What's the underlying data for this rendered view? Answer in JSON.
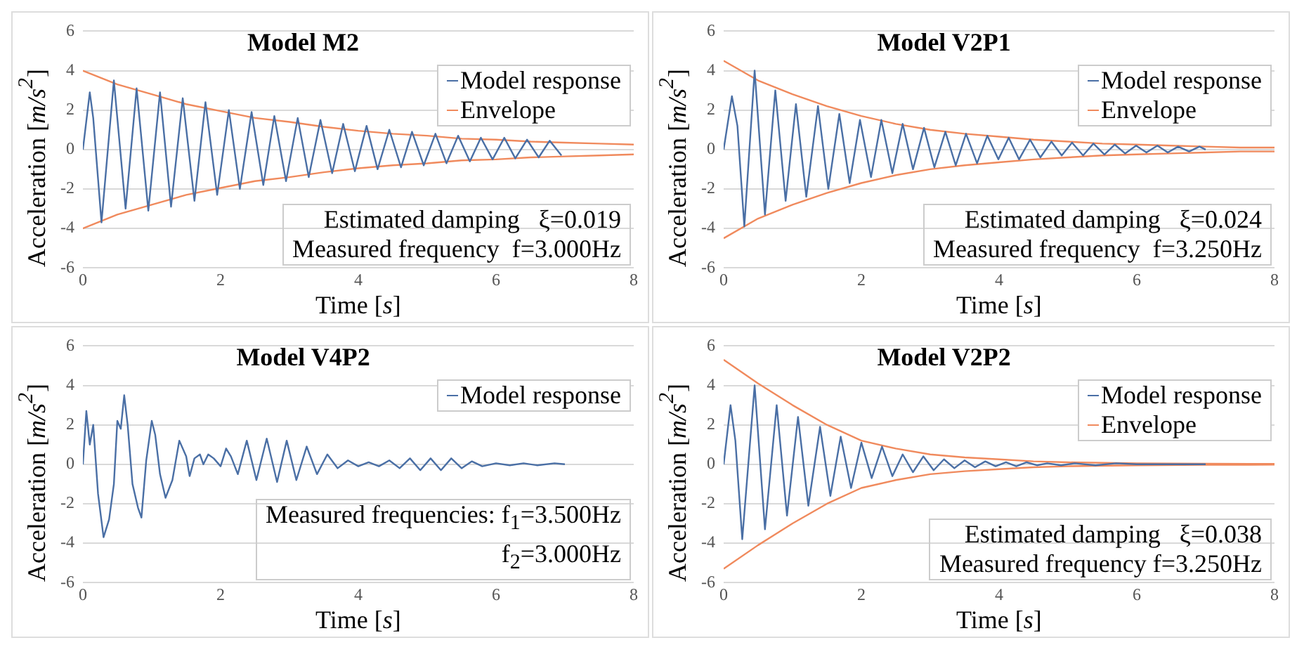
{
  "chart_data": [
    {
      "type": "line",
      "title": "Model M2",
      "xlabel": "Time [s]",
      "ylabel": "Acceleration [m/s$^{2}$]",
      "xlim": [
        0,
        8
      ],
      "xticks": [
        0,
        2,
        4,
        6,
        8
      ],
      "ylim": [
        -6,
        6
      ],
      "yticks": [
        -6,
        -4,
        -2,
        0,
        2,
        4,
        6
      ],
      "grid": "y",
      "legend": "top right",
      "marker": "none",
      "annotations": [
        "Estimated damping   ξ=0.019",
        "Measured frequency  f=3.000Hz"
      ],
      "series": [
        {
          "name": "Model response",
          "color": "#4a6fa5",
          "x": [
            0,
            0.1,
            0.15,
            0.27,
            0.45,
            0.62,
            0.78,
            0.95,
            1.12,
            1.28,
            1.45,
            1.62,
            1.78,
            1.95,
            2.12,
            2.28,
            2.45,
            2.62,
            2.78,
            2.95,
            3.12,
            3.28,
            3.45,
            3.62,
            3.78,
            3.95,
            4.12,
            4.28,
            4.45,
            4.62,
            4.78,
            4.95,
            5.12,
            5.28,
            5.45,
            5.62,
            5.78,
            5.95,
            6.12,
            6.28,
            6.45,
            6.62,
            6.78,
            6.95
          ],
          "values": [
            0,
            2.9,
            1.6,
            -3.7,
            3.5,
            -3,
            3.1,
            -3.1,
            2.9,
            -2.9,
            2.6,
            -2.6,
            2.4,
            -2.3,
            2,
            -2,
            1.9,
            -1.8,
            1.7,
            -1.6,
            1.6,
            -1.4,
            1.5,
            -1.2,
            1.3,
            -1.1,
            1.2,
            -1,
            1,
            -0.9,
            0.9,
            -0.8,
            0.8,
            -0.7,
            0.7,
            -0.6,
            0.6,
            -0.5,
            0.6,
            -0.45,
            0.5,
            -0.4,
            0.45,
            -0.3
          ]
        },
        {
          "name": "Envelope",
          "color": "#f08a5d",
          "x": [
            0,
            0.5,
            1,
            1.5,
            2,
            2.5,
            3,
            3.5,
            4,
            4.5,
            5,
            5.5,
            6,
            6.5,
            7,
            7.5,
            8
          ],
          "values": [
            4,
            3.3,
            2.8,
            2.3,
            1.95,
            1.6,
            1.4,
            1.15,
            0.95,
            0.8,
            0.7,
            0.55,
            0.5,
            0.4,
            0.35,
            0.3,
            0.25
          ]
        },
        {
          "color": "#f08a5d",
          "x": [
            0,
            0.5,
            1,
            1.5,
            2,
            2.5,
            3,
            3.5,
            4,
            4.5,
            5,
            5.5,
            6,
            6.5,
            7,
            7.5,
            8
          ],
          "values": [
            -4,
            -3.3,
            -2.8,
            -2.3,
            -1.95,
            -1.6,
            -1.4,
            -1.15,
            -0.95,
            -0.8,
            -0.7,
            -0.55,
            -0.5,
            -0.4,
            -0.35,
            -0.3,
            -0.25
          ]
        }
      ]
    },
    {
      "type": "line",
      "title": "Model V2P1",
      "xlabel": "Time [s]",
      "ylabel": "Acceleration [m/s$^{2}$]",
      "xlim": [
        0,
        8
      ],
      "xticks": [
        0,
        2,
        4,
        6,
        8
      ],
      "ylim": [
        -6,
        6
      ],
      "yticks": [
        -6,
        -4,
        -2,
        0,
        2,
        4,
        6
      ],
      "grid": "y",
      "legend": "top right",
      "marker": "none",
      "annotations": [
        "Estimated damping   ξ=0.024",
        "Measured frequency  f=3.250Hz"
      ],
      "series": [
        {
          "name": "Model response",
          "color": "#4a6fa5",
          "x": [
            0,
            0.12,
            0.2,
            0.3,
            0.45,
            0.6,
            0.75,
            0.9,
            1.05,
            1.2,
            1.37,
            1.52,
            1.68,
            1.83,
            1.98,
            2.14,
            2.29,
            2.45,
            2.6,
            2.75,
            2.91,
            3.06,
            3.22,
            3.37,
            3.52,
            3.68,
            3.83,
            3.99,
            4.14,
            4.29,
            4.45,
            4.6,
            4.76,
            4.91,
            5.06,
            5.22,
            5.37,
            5.53,
            5.68,
            5.83,
            5.99,
            6.14,
            6.3,
            6.45,
            6.6,
            6.76,
            6.91,
            7.0
          ],
          "values": [
            0,
            2.7,
            1.2,
            -3.9,
            4,
            -3.3,
            3,
            -2.6,
            2.3,
            -2.4,
            2.2,
            -2,
            1.8,
            -1.7,
            1.5,
            -1.4,
            1.5,
            -1.2,
            1.3,
            -1,
            1.1,
            -0.9,
            0.9,
            -0.8,
            0.8,
            -0.7,
            0.7,
            -0.5,
            0.6,
            -0.5,
            0.5,
            -0.4,
            0.4,
            -0.3,
            0.35,
            -0.3,
            0.3,
            -0.25,
            0.25,
            -0.2,
            0.2,
            -0.15,
            0.2,
            -0.15,
            0.15,
            -0.1,
            0.15,
            0
          ]
        },
        {
          "name": "Envelope",
          "color": "#f08a5d",
          "x": [
            0,
            0.5,
            1,
            1.5,
            2,
            2.5,
            3,
            3.5,
            4,
            4.5,
            5,
            5.5,
            6,
            6.5,
            7,
            7.5,
            8
          ],
          "values": [
            4.5,
            3.5,
            2.8,
            2.2,
            1.7,
            1.3,
            1,
            0.8,
            0.65,
            0.5,
            0.4,
            0.3,
            0.25,
            0.2,
            0.15,
            0.1,
            0.1
          ]
        },
        {
          "color": "#f08a5d",
          "x": [
            0,
            0.5,
            1,
            1.5,
            2,
            2.5,
            3,
            3.5,
            4,
            4.5,
            5,
            5.5,
            6,
            6.5,
            7,
            7.5,
            8
          ],
          "values": [
            -4.5,
            -3.5,
            -2.8,
            -2.2,
            -1.7,
            -1.3,
            -1,
            -0.8,
            -0.65,
            -0.5,
            -0.4,
            -0.3,
            -0.25,
            -0.2,
            -0.15,
            -0.1,
            -0.1
          ]
        }
      ]
    },
    {
      "type": "line",
      "title": "Model V4P2",
      "xlabel": "Time [s]",
      "ylabel": "Acceleration [m/s$^{2}$]",
      "xlim": [
        0,
        8
      ],
      "xticks": [
        0,
        2,
        4,
        6,
        8
      ],
      "ylim": [
        -6,
        6
      ],
      "yticks": [
        -6,
        -4,
        -2,
        0,
        2,
        4,
        6
      ],
      "grid": "y",
      "legend": "top right",
      "marker": "none",
      "annotations": [
        "Measured frequencies: f$_{1}$=3.500Hz",
        "f$_{2}$=3.000Hz"
      ],
      "series": [
        {
          "name": "Model response",
          "color": "#4a6fa5",
          "x": [
            0,
            0.05,
            0.1,
            0.15,
            0.22,
            0.3,
            0.38,
            0.45,
            0.5,
            0.55,
            0.6,
            0.65,
            0.72,
            0.8,
            0.85,
            0.92,
            1,
            1.05,
            1.12,
            1.2,
            1.3,
            1.4,
            1.5,
            1.55,
            1.62,
            1.7,
            1.75,
            1.82,
            1.9,
            2,
            2.08,
            2.15,
            2.25,
            2.38,
            2.52,
            2.67,
            2.82,
            2.96,
            3.1,
            3.25,
            3.4,
            3.55,
            3.7,
            3.85,
            4,
            4.15,
            4.3,
            4.45,
            4.6,
            4.75,
            4.9,
            5.05,
            5.2,
            5.35,
            5.5,
            5.65,
            5.8,
            6,
            6.2,
            6.4,
            6.6,
            6.85,
            7
          ],
          "values": [
            0,
            2.7,
            1,
            2,
            -1.5,
            -3.7,
            -2.8,
            -1,
            2.2,
            1.8,
            3.5,
            2,
            -1,
            -2.2,
            -2.7,
            0.2,
            2.2,
            1.5,
            -0.5,
            -1.7,
            -0.8,
            1.2,
            0.4,
            -0.6,
            0.3,
            0.5,
            0,
            0.5,
            0.3,
            -0.1,
            0.8,
            0.4,
            -0.5,
            1.2,
            -0.8,
            1.3,
            -0.9,
            1.2,
            -0.8,
            0.9,
            -0.5,
            0.5,
            -0.2,
            0.2,
            -0.1,
            0.1,
            -0.1,
            0.2,
            -0.2,
            0.3,
            -0.3,
            0.3,
            -0.3,
            0.3,
            -0.2,
            0.15,
            -0.1,
            0.05,
            -0.05,
            0.05,
            -0.05,
            0.05,
            0
          ]
        }
      ]
    },
    {
      "type": "line",
      "title": "Model V2P2",
      "xlabel": "Time [s]",
      "ylabel": "Acceleration [m/s$^{2}$]",
      "xlim": [
        0,
        8
      ],
      "xticks": [
        0,
        2,
        4,
        6,
        8
      ],
      "ylim": [
        -6,
        6
      ],
      "yticks": [
        -6,
        -4,
        -2,
        0,
        2,
        4,
        6
      ],
      "grid": "y",
      "legend": "top right",
      "marker": "none",
      "annotations": [
        "Estimated damping   ξ=0.038",
        "Measured frequency f=3.250Hz"
      ],
      "series": [
        {
          "name": "Model response",
          "color": "#4a6fa5",
          "x": [
            0,
            0.1,
            0.17,
            0.27,
            0.45,
            0.6,
            0.77,
            0.92,
            1.08,
            1.23,
            1.4,
            1.55,
            1.7,
            1.85,
            2,
            2.15,
            2.3,
            2.45,
            2.6,
            2.75,
            2.9,
            3.05,
            3.2,
            3.35,
            3.5,
            3.65,
            3.8,
            3.95,
            4.1,
            4.25,
            4.4,
            4.55,
            4.7,
            4.9,
            5.1,
            5.4,
            5.7,
            6,
            6.5,
            7
          ],
          "values": [
            0,
            3,
            1.2,
            -3.8,
            4,
            -3.3,
            3,
            -2.6,
            2.4,
            -2.1,
            1.9,
            -1.6,
            1.4,
            -1.2,
            1.1,
            -0.7,
            0.9,
            -0.6,
            0.5,
            -0.4,
            0.4,
            -0.3,
            0.25,
            -0.2,
            0.2,
            -0.15,
            0.15,
            -0.1,
            0.1,
            -0.1,
            0.1,
            -0.05,
            0.05,
            -0.05,
            0.05,
            -0.05,
            0.05,
            0,
            0,
            0
          ]
        },
        {
          "name": "Envelope",
          "color": "#f08a5d",
          "x": [
            0,
            0.5,
            1,
            1.5,
            2,
            2.5,
            3,
            3.5,
            4,
            4.5,
            5,
            6,
            7,
            8
          ],
          "values": [
            5.3,
            4.1,
            3,
            2,
            1.2,
            0.8,
            0.5,
            0.35,
            0.25,
            0.15,
            0.1,
            0.05,
            0.03,
            0.02
          ]
        },
        {
          "color": "#f08a5d",
          "x": [
            0,
            0.5,
            1,
            1.5,
            2,
            2.5,
            3,
            3.5,
            4,
            4.5,
            5,
            6,
            7,
            8
          ],
          "values": [
            -5.3,
            -4.1,
            -3,
            -2,
            -1.2,
            -0.8,
            -0.5,
            -0.35,
            -0.25,
            -0.15,
            -0.1,
            -0.05,
            -0.03,
            -0.02
          ]
        }
      ]
    }
  ]
}
